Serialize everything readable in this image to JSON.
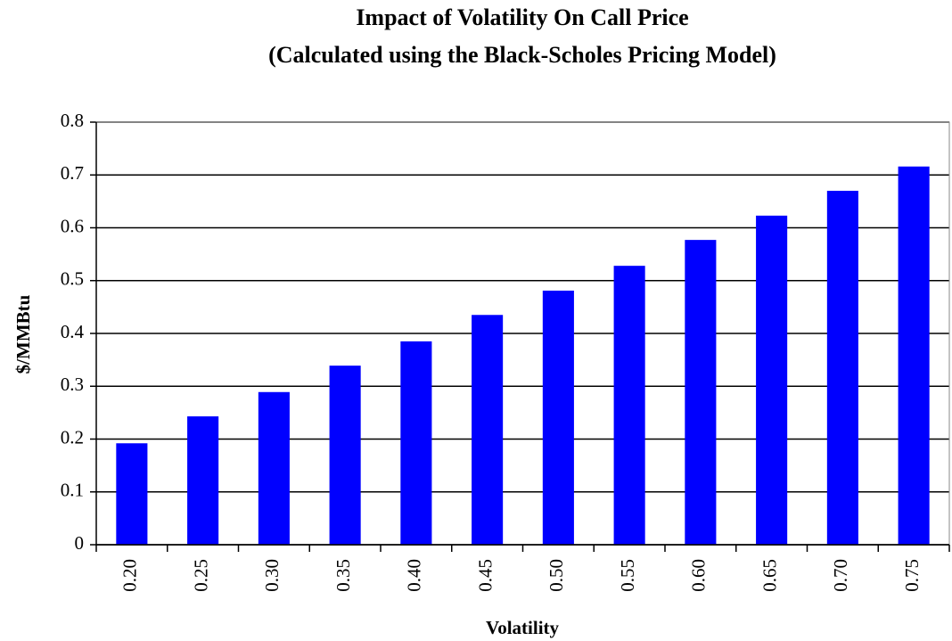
{
  "chart_data": {
    "type": "bar",
    "title": "Impact of Volatility On Call Price",
    "subtitle": "(Calculated using the Black-Scholes Pricing Model)",
    "x_label": "Volatility",
    "y_label": "$/MMBtu",
    "categories": [
      "0.20",
      "0.25",
      "0.30",
      "0.35",
      "0.40",
      "0.45",
      "0.50",
      "0.55",
      "0.60",
      "0.65",
      "0.70",
      "0.75"
    ],
    "values": [
      0.192,
      0.243,
      0.289,
      0.339,
      0.385,
      0.435,
      0.481,
      0.528,
      0.577,
      0.623,
      0.67,
      0.716
    ],
    "color": "#0000ff",
    "ylim": [
      0,
      0.8
    ],
    "yticks": [
      0,
      0.1,
      0.2,
      0.3,
      0.4,
      0.5,
      0.6,
      0.7,
      0.8
    ],
    "grid": true
  }
}
